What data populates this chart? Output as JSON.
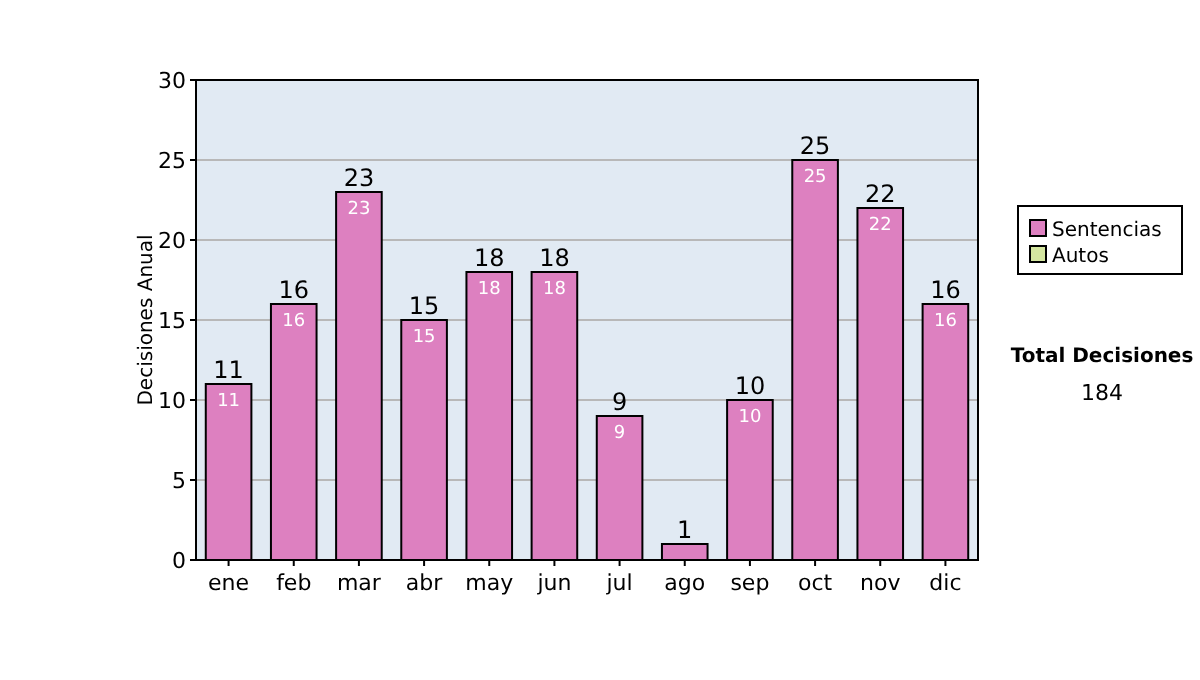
{
  "chart_data": {
    "type": "bar",
    "stacked": true,
    "ylabel": "Decisiones Anual",
    "categories": [
      "ene",
      "feb",
      "mar",
      "abr",
      "may",
      "jun",
      "jul",
      "ago",
      "sep",
      "oct",
      "nov",
      "dic"
    ],
    "series": [
      {
        "name": "Sentencias",
        "color": "#dd80c0",
        "values": [
          11,
          16,
          23,
          15,
          18,
          18,
          9,
          1,
          10,
          25,
          22,
          16
        ],
        "value_labels": [
          "11",
          "16",
          "23",
          "15",
          "18",
          "18",
          "9",
          null,
          "10",
          "25",
          "22",
          "16"
        ]
      },
      {
        "name": "Autos",
        "color": "#d4e6a0",
        "values": [
          0,
          0,
          0,
          0,
          0,
          0,
          0,
          0,
          0,
          0,
          0,
          0
        ]
      }
    ],
    "totals": [
      "11",
      "16",
      "23",
      "15",
      "18",
      "18",
      "9",
      "1",
      "10",
      "25",
      "22",
      "16"
    ],
    "ylim": [
      0,
      30
    ],
    "yticks": [
      0,
      5,
      10,
      15,
      20,
      25,
      30
    ],
    "grid": "y",
    "legend": "right",
    "annotations": [
      "Total Decisiones",
      "184"
    ]
  }
}
